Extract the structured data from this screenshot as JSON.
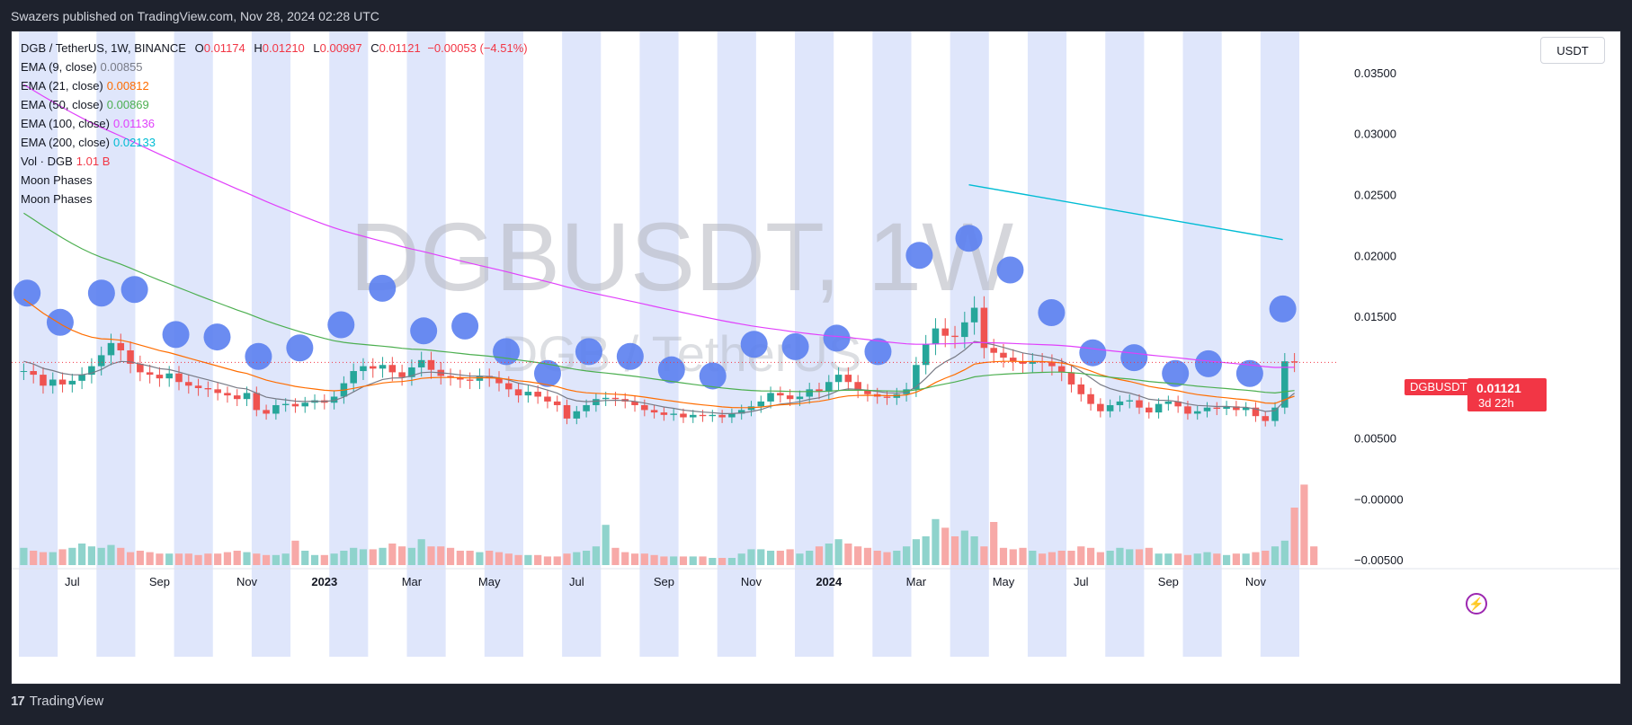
{
  "header": {
    "published": "Swazers published on TradingView.com, Nov 28, 2024 02:28 UTC"
  },
  "footer": {
    "brand": "TradingView",
    "logo_glyph": "17"
  },
  "legend": {
    "pair": "DGB / TetherUS, 1W, BINANCE",
    "o_label": "O",
    "o": "0.01174",
    "h_label": "H",
    "h": "0.01210",
    "l_label": "L",
    "l": "0.00997",
    "c_label": "C",
    "c": "0.01121",
    "change": "−0.00053 (−4.51%)",
    "ema": [
      {
        "label": "EMA (9, close)",
        "value": "0.00855",
        "color": "#787b86"
      },
      {
        "label": "EMA (21, close)",
        "value": "0.00812",
        "color": "#ff6d00"
      },
      {
        "label": "EMA (50, close)",
        "value": "0.00869",
        "color": "#4caf50"
      },
      {
        "label": "EMA (100, close)",
        "value": "0.01136",
        "color": "#e040fb"
      },
      {
        "label": "EMA (200, close)",
        "value": "0.02133",
        "color": "#00bcd4"
      }
    ],
    "vol_label": "Vol · DGB",
    "vol_value": "1.01 B",
    "moon1": "Moon Phases",
    "moon2": "Moon Phases"
  },
  "unit_button": "USDT",
  "price_tag": {
    "symbol": "DGBUSDT",
    "price": "0.01121",
    "countdown": "3d 22h"
  },
  "colors": {
    "up": "#26a69a",
    "down": "#ef5350",
    "moon": "#5b7ff0",
    "band": "#dfe6fb",
    "last": "#f23645"
  },
  "chart_data": {
    "type": "candlestick",
    "title": "DGBUSDT, 1W",
    "subtitle": "DGB / TetherUS",
    "y_ticks": [
      "0.03500",
      "0.03000",
      "0.02500",
      "0.02000",
      "0.01500",
      "0.00500",
      "−0.00000",
      "−0.00500"
    ],
    "y_tick_values": [
      0.035,
      0.03,
      0.025,
      0.02,
      0.015,
      0.005,
      0.0,
      -0.005
    ],
    "ylim": [
      -0.0075,
      0.0378
    ],
    "x_ticks": [
      "Jul",
      "Sep",
      "Nov",
      "2023",
      "Mar",
      "May",
      "Jul",
      "Sep",
      "Nov",
      "2024",
      "Mar",
      "May",
      "Jul",
      "Sep",
      "Nov"
    ],
    "x_tick_week": [
      5,
      14,
      23,
      31,
      40,
      48,
      57,
      66,
      75,
      83,
      92,
      101,
      109,
      118,
      127
    ],
    "weeks": 132,
    "candles_note": "approximate weekly candles, Jun 2022 - Nov 2024",
    "closes": [
      0.0105,
      0.0102,
      0.0093,
      0.0098,
      0.0094,
      0.0097,
      0.0102,
      0.0109,
      0.0118,
      0.0128,
      0.0122,
      0.0111,
      0.0104,
      0.0102,
      0.0099,
      0.0103,
      0.0096,
      0.0093,
      0.0091,
      0.009,
      0.0087,
      0.0085,
      0.0082,
      0.0087,
      0.0073,
      0.007,
      0.0077,
      0.0078,
      0.0076,
      0.0079,
      0.0081,
      0.0079,
      0.0084,
      0.0095,
      0.0105,
      0.0109,
      0.0107,
      0.011,
      0.0104,
      0.01,
      0.0108,
      0.0114,
      0.0106,
      0.0101,
      0.01,
      0.0098,
      0.0097,
      0.0101,
      0.0099,
      0.0095,
      0.009,
      0.0085,
      0.0088,
      0.0084,
      0.008,
      0.0077,
      0.0066,
      0.0072,
      0.0077,
      0.0082,
      0.0083,
      0.0082,
      0.008,
      0.0077,
      0.0073,
      0.0071,
      0.0069,
      0.007,
      0.0067,
      0.0069,
      0.0068,
      0.0069,
      0.0067,
      0.007,
      0.0073,
      0.0076,
      0.008,
      0.0087,
      0.0085,
      0.0082,
      0.0084,
      0.009,
      0.0088,
      0.0096,
      0.0102,
      0.0096,
      0.0089,
      0.0086,
      0.0084,
      0.0083,
      0.0086,
      0.009,
      0.011,
      0.0127,
      0.014,
      0.0134,
      0.0133,
      0.0145,
      0.0157,
      0.0124,
      0.012,
      0.0116,
      0.0113,
      0.0111,
      0.0113,
      0.0112,
      0.0109,
      0.0104,
      0.0094,
      0.0086,
      0.0078,
      0.0072,
      0.0077,
      0.008,
      0.0081,
      0.0075,
      0.0071,
      0.0078,
      0.008,
      0.0076,
      0.007,
      0.0072,
      0.0075,
      0.0074,
      0.0076,
      0.0073,
      0.0075,
      0.0068,
      0.0064,
      0.0075,
      0.0113,
      0.0112
    ],
    "volumes": [
      0.12,
      0.1,
      0.09,
      0.09,
      0.11,
      0.12,
      0.15,
      0.13,
      0.12,
      0.14,
      0.12,
      0.09,
      0.1,
      0.09,
      0.08,
      0.08,
      0.08,
      0.08,
      0.07,
      0.08,
      0.08,
      0.09,
      0.1,
      0.09,
      0.08,
      0.07,
      0.07,
      0.08,
      0.17,
      0.1,
      0.07,
      0.07,
      0.08,
      0.1,
      0.12,
      0.11,
      0.11,
      0.12,
      0.15,
      0.13,
      0.12,
      0.18,
      0.13,
      0.13,
      0.12,
      0.1,
      0.1,
      0.09,
      0.1,
      0.09,
      0.08,
      0.07,
      0.07,
      0.07,
      0.06,
      0.06,
      0.08,
      0.09,
      0.1,
      0.13,
      0.28,
      0.12,
      0.09,
      0.08,
      0.08,
      0.07,
      0.06,
      0.06,
      0.06,
      0.06,
      0.06,
      0.05,
      0.05,
      0.05,
      0.08,
      0.11,
      0.11,
      0.1,
      0.1,
      0.11,
      0.08,
      0.1,
      0.13,
      0.15,
      0.18,
      0.15,
      0.13,
      0.12,
      0.1,
      0.09,
      0.1,
      0.13,
      0.18,
      0.2,
      0.32,
      0.26,
      0.2,
      0.24,
      0.2,
      0.13,
      0.3,
      0.12,
      0.11,
      0.12,
      0.1,
      0.08,
      0.09,
      0.1,
      0.1,
      0.13,
      0.12,
      0.09,
      0.1,
      0.12,
      0.11,
      0.11,
      0.12,
      0.08,
      0.08,
      0.08,
      0.07,
      0.08,
      0.09,
      0.08,
      0.07,
      0.08,
      0.08,
      0.09,
      0.1,
      0.13,
      0.17,
      0.4,
      0.56,
      0.13
    ],
    "volume_max_label": "1.01 B",
    "moon_points": [
      [
        1,
        0.0169
      ],
      [
        5,
        0.0145
      ],
      [
        10,
        0.0169
      ],
      [
        14,
        0.0172
      ],
      [
        19,
        0.0135
      ],
      [
        24,
        0.0133
      ],
      [
        29,
        0.0117
      ],
      [
        34,
        0.0124
      ],
      [
        39,
        0.0143
      ],
      [
        44,
        0.0173
      ],
      [
        49,
        0.0138
      ],
      [
        54,
        0.0142
      ],
      [
        59,
        0.0121
      ],
      [
        64,
        0.0103
      ],
      [
        69,
        0.0121
      ],
      [
        74,
        0.0117
      ],
      [
        79,
        0.0106
      ],
      [
        84,
        0.0101
      ],
      [
        89,
        0.0127
      ],
      [
        94,
        0.0125
      ],
      [
        99,
        0.0132
      ],
      [
        104,
        0.0121
      ],
      [
        109,
        0.02
      ],
      [
        115,
        0.0214
      ],
      [
        120,
        0.0188
      ],
      [
        125,
        0.0153
      ],
      [
        130,
        0.012
      ],
      [
        135,
        0.0116
      ],
      [
        140,
        0.0103
      ],
      [
        144,
        0.0111
      ],
      [
        149,
        0.0103
      ],
      [
        153,
        0.0156
      ]
    ],
    "ema_200_points": [
      [
        115,
        0.0258
      ],
      [
        153,
        0.0213
      ]
    ]
  }
}
